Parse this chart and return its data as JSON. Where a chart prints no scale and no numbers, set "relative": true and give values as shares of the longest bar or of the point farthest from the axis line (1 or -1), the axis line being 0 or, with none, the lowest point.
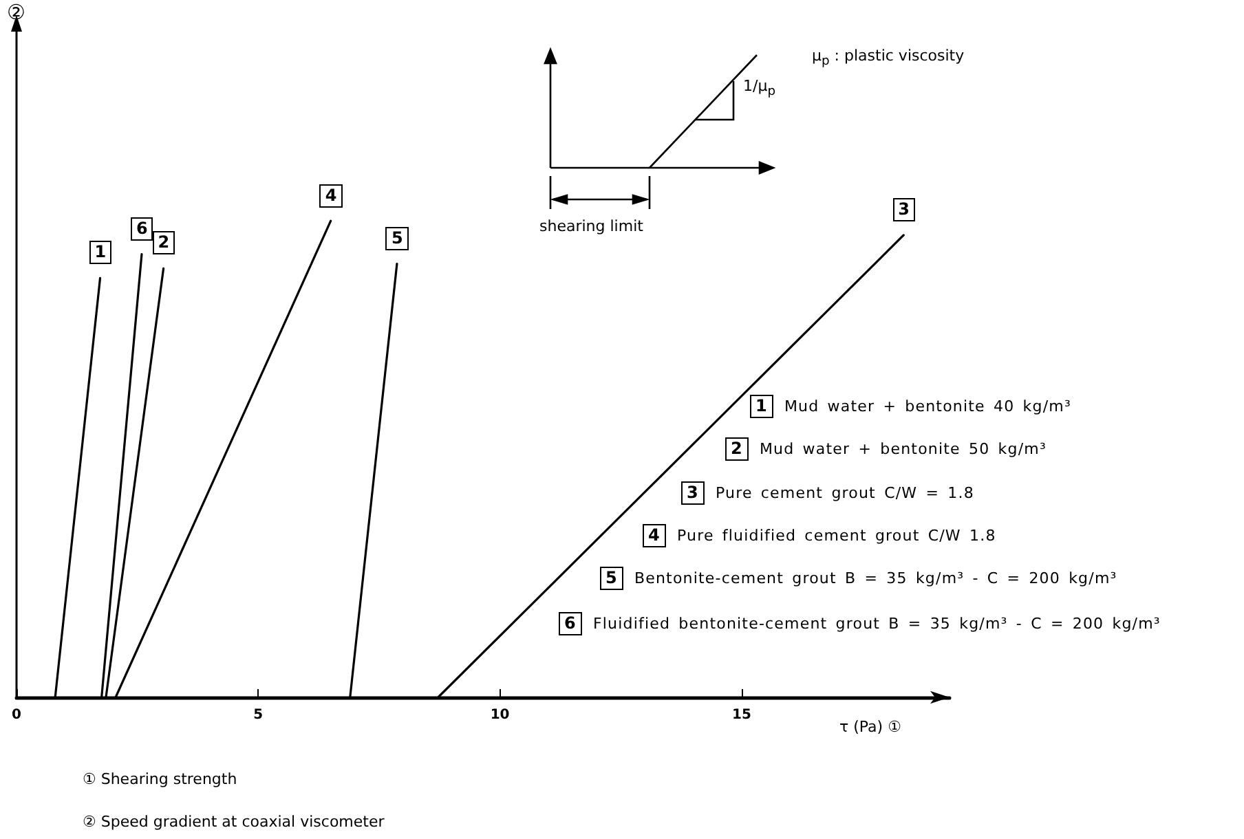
{
  "chart_data": {
    "type": "line",
    "relative": true,
    "xlabel": "τ (Pa) ①",
    "xlim": [
      0,
      19.3
    ],
    "xticks": [
      0,
      5,
      10,
      15
    ],
    "grid": false,
    "line_style": "solid",
    "series": [
      {
        "name": "1",
        "color": "#000000",
        "x": [
          0.8,
          1.73
        ],
        "values": [
          0,
          0.88
        ]
      },
      {
        "name": "2",
        "color": "#000000",
        "x": [
          1.85,
          3.04
        ],
        "values": [
          0,
          0.9
        ]
      },
      {
        "name": "3",
        "color": "#000000",
        "x": [
          8.72,
          18.35
        ],
        "values": [
          0,
          0.97
        ]
      },
      {
        "name": "4",
        "color": "#000000",
        "x": [
          2.05,
          6.5
        ],
        "values": [
          0,
          1
        ]
      },
      {
        "name": "5",
        "color": "#000000",
        "x": [
          6.9,
          7.87
        ],
        "values": [
          0,
          0.91
        ]
      },
      {
        "name": "6",
        "color": "#000000",
        "x": [
          1.76,
          2.59
        ],
        "values": [
          0,
          0.93
        ]
      }
    ],
    "annotations": [
      "②",
      "shearing limit",
      "1/μ$_{p}$",
      "μ$_{p}$ : plastic viscosity",
      "①   Shearing strength",
      "②   Speed gradient at coaxial viscometer",
      "Mud water + bentonite 40 kg/m³",
      "Mud water + bentonite 50 kg/m³",
      "Pure cement grout C/W = 1.8",
      "Pure fluidified cement grout C/W 1.8",
      "Bentonite-cement grout B = 35 kg/m³ - C = 200 kg/m³",
      "Fluidified bentonite-cement grout B = 35 kg/m³ - C = 200 kg/m³"
    ]
  }
}
